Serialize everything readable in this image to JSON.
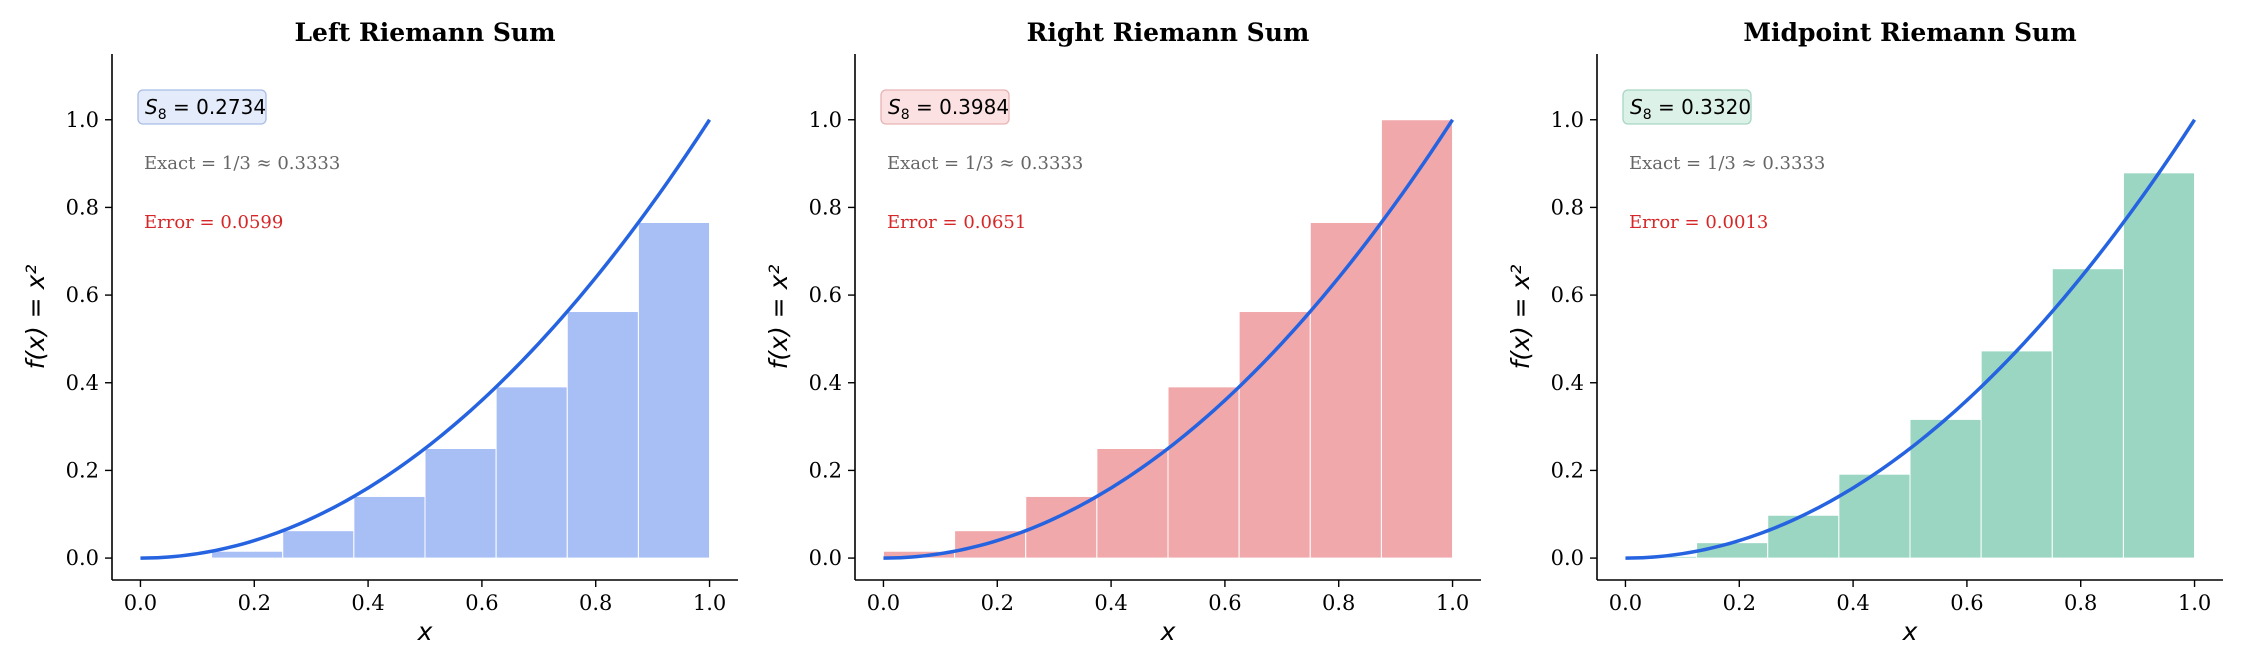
{
  "chart_data": [
    {
      "type": "bar",
      "title": "Left Riemann Sum",
      "xlabel": "x",
      "ylabel": "f(x) = x²",
      "xlim": [
        -0.05,
        1.05
      ],
      "ylim": [
        -0.05,
        1.15
      ],
      "xticks": [
        "0.0",
        "0.2",
        "0.4",
        "0.6",
        "0.8",
        "1.0"
      ],
      "yticks": [
        "0.0",
        "0.2",
        "0.4",
        "0.6",
        "0.8",
        "1.0"
      ],
      "bar_edges": [
        0,
        0.125,
        0.25,
        0.375,
        0.5,
        0.625,
        0.75,
        0.875,
        1.0
      ],
      "values": [
        0.0,
        0.0156,
        0.0625,
        0.1406,
        0.25,
        0.3906,
        0.5625,
        0.7656
      ],
      "bar_color": "#a7bff5",
      "box_color": "#e4ebfb",
      "box_edge": "#a9bde6",
      "curve": "f(x) = x²",
      "curve_color": "#2563e0",
      "sum_label": "S",
      "sum_sub": "8",
      "sum_value": "0.2734",
      "exact_label": "Exact",
      "exact_value": "1/3 ≈ 0.3333",
      "error_label": "Error",
      "error_value": "0.0599"
    },
    {
      "type": "bar",
      "title": "Right Riemann Sum",
      "xlabel": "x",
      "ylabel": "f(x) = x²",
      "xlim": [
        -0.05,
        1.05
      ],
      "ylim": [
        -0.05,
        1.15
      ],
      "xticks": [
        "0.0",
        "0.2",
        "0.4",
        "0.6",
        "0.8",
        "1.0"
      ],
      "yticks": [
        "0.0",
        "0.2",
        "0.4",
        "0.6",
        "0.8",
        "1.0"
      ],
      "bar_edges": [
        0,
        0.125,
        0.25,
        0.375,
        0.5,
        0.625,
        0.75,
        0.875,
        1.0
      ],
      "values": [
        0.0156,
        0.0625,
        0.1406,
        0.25,
        0.3906,
        0.5625,
        0.7656,
        1.0
      ],
      "bar_color": "#f0a8aa",
      "box_color": "#fbe1e1",
      "box_edge": "#e8b3b5",
      "curve": "f(x) = x²",
      "curve_color": "#2563e0",
      "sum_label": "S",
      "sum_sub": "8",
      "sum_value": "0.3984",
      "exact_label": "Exact",
      "exact_value": "1/3 ≈ 0.3333",
      "error_label": "Error",
      "error_value": "0.0651"
    },
    {
      "type": "bar",
      "title": "Midpoint Riemann Sum",
      "xlabel": "x",
      "ylabel": "f(x) = x²",
      "xlim": [
        -0.05,
        1.05
      ],
      "ylim": [
        -0.05,
        1.15
      ],
      "xticks": [
        "0.0",
        "0.2",
        "0.4",
        "0.6",
        "0.8",
        "1.0"
      ],
      "yticks": [
        "0.0",
        "0.2",
        "0.4",
        "0.6",
        "0.8",
        "1.0"
      ],
      "bar_edges": [
        0,
        0.125,
        0.25,
        0.375,
        0.5,
        0.625,
        0.75,
        0.875,
        1.0
      ],
      "values": [
        0.0039,
        0.0352,
        0.0977,
        0.1914,
        0.3164,
        0.4727,
        0.6602,
        0.8789
      ],
      "bar_color": "#9ad6c2",
      "box_color": "#dcf1e8",
      "box_edge": "#a6d6c4",
      "curve": "f(x) = x²",
      "curve_color": "#2563e0",
      "sum_label": "S",
      "sum_sub": "8",
      "sum_value": "0.3320",
      "exact_label": "Exact",
      "exact_value": "1/3 ≈ 0.3333",
      "error_label": "Error",
      "error_value": "0.0013"
    }
  ]
}
